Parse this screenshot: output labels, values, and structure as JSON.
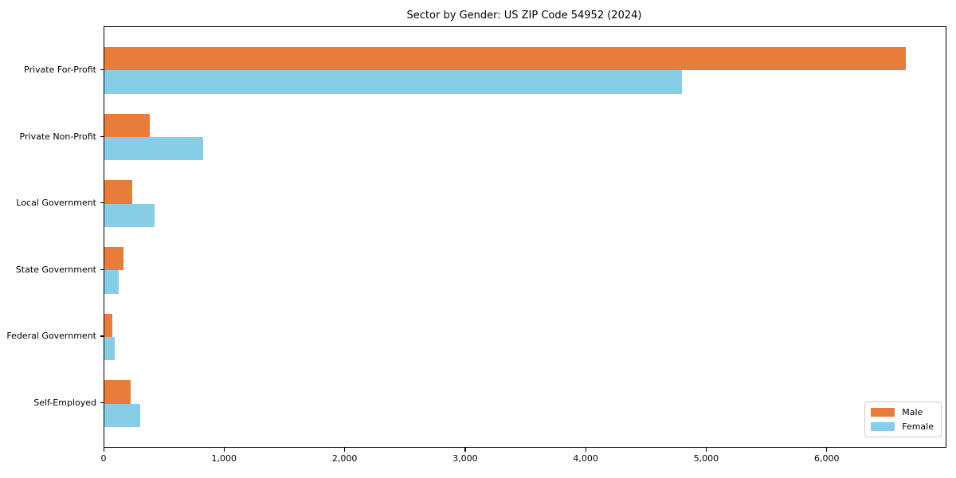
{
  "chart_data": {
    "type": "bar",
    "orientation": "horizontal",
    "title": "Sector by Gender: US ZIP Code 54952 (2024)",
    "categories": [
      "Private For-Profit",
      "Private Non-Profit",
      "Local Government",
      "State Government",
      "Federal Government",
      "Self-Employed"
    ],
    "series": [
      {
        "name": "Male",
        "color": "#e87c3b",
        "values": [
          6650,
          380,
          230,
          160,
          65,
          215
        ]
      },
      {
        "name": "Female",
        "color": "#87cde5",
        "values": [
          4795,
          820,
          415,
          120,
          85,
          300
        ]
      }
    ],
    "xlim": [
      0,
      6980
    ],
    "x_ticks": [
      0,
      1000,
      2000,
      3000,
      4000,
      5000,
      6000
    ],
    "x_tick_labels": [
      "0",
      "1,000",
      "2,000",
      "3,000",
      "4,000",
      "5,000",
      "6,000"
    ],
    "grid": false,
    "legend": {
      "position": "lower-right",
      "entries": [
        "Male",
        "Female"
      ]
    }
  }
}
